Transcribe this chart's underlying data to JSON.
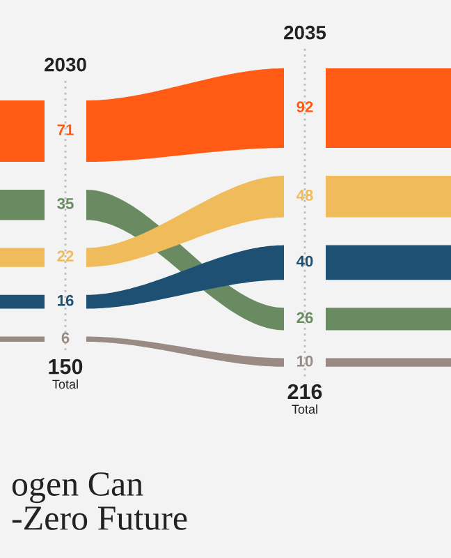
{
  "chart_data": {
    "type": "other",
    "title": "ogen Can\n-Zero Future",
    "categories": [
      "2030",
      "2035"
    ],
    "series": [
      {
        "color": "#ff5b14",
        "values": [
          71,
          92
        ]
      },
      {
        "color": "#6a8a62",
        "values": [
          35,
          26
        ]
      },
      {
        "color": "#f0bb5a",
        "values": [
          22,
          48
        ]
      },
      {
        "color": "#1d5073",
        "values": [
          16,
          40
        ]
      },
      {
        "color": "#9a8a84",
        "values": [
          6,
          10
        ]
      }
    ],
    "data_labels": true,
    "totals": [
      "150",
      "216"
    ],
    "annotations": [
      "Total",
      "Total"
    ]
  }
}
